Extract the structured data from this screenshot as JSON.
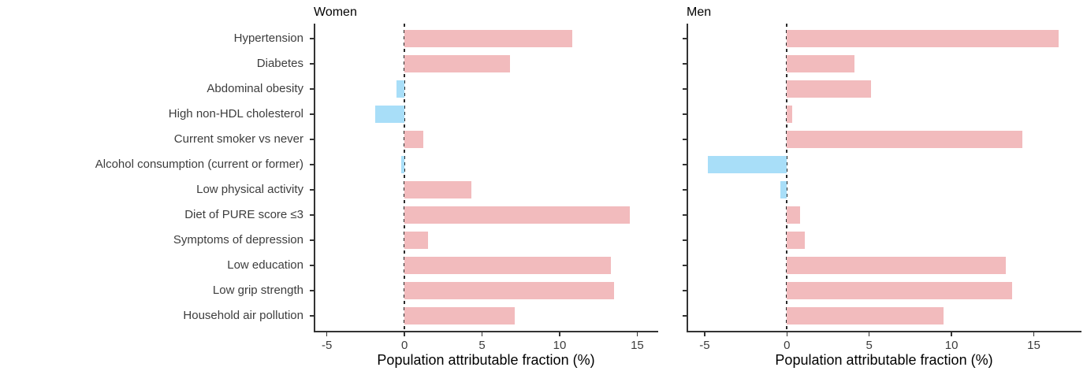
{
  "chart_data": [
    {
      "type": "bar",
      "orientation": "horizontal",
      "title": "Women",
      "xlabel": "Population attributable fraction (%)",
      "categories": [
        "Hypertension",
        "Diabetes",
        "Abdominal obesity",
        "High non-HDL cholesterol",
        "Current smoker vs never",
        "Alcohol consumption (current or former)",
        "Low physical activity",
        "Diet of PURE score ≤3",
        "Symptoms of depression",
        "Low education",
        "Low grip strength",
        "Household air pollution"
      ],
      "values": [
        10.8,
        6.8,
        -0.5,
        -1.9,
        1.2,
        -0.2,
        4.3,
        14.5,
        1.5,
        13.3,
        13.5,
        7.1
      ],
      "xticks": [
        -5,
        0,
        5,
        10,
        15
      ],
      "xlim": [
        -5.85,
        16.35
      ],
      "zero_line": "dashed-at-0",
      "grid": "off",
      "legend": "none",
      "positive_color": "#F2BBBD",
      "negative_color": "#A8DEF8",
      "axis_color": "#333333",
      "axis_text_color": "#3d3d3d"
    },
    {
      "type": "bar",
      "orientation": "horizontal",
      "title": "Men",
      "xlabel": "Population attributable fraction (%)",
      "categories": [
        "Hypertension",
        "Diabetes",
        "Abdominal obesity",
        "High non-HDL cholesterol",
        "Current smoker vs never",
        "Alcohol consumption (current or former)",
        "Low physical activity",
        "Diet of PURE score ≤3",
        "Symptoms of depression",
        "Low education",
        "Low grip strength",
        "Household air pollution"
      ],
      "values": [
        16.5,
        4.1,
        5.1,
        0.3,
        14.3,
        -4.8,
        -0.4,
        0.8,
        1.1,
        13.3,
        13.7,
        9.5
      ],
      "xticks": [
        -5,
        0,
        5,
        10,
        15
      ],
      "xlim": [
        -6.1,
        17.9
      ],
      "zero_line": "dashed-at-0",
      "grid": "off",
      "legend": "none",
      "positive_color": "#F2BBBD",
      "negative_color": "#A8DEF8",
      "axis_color": "#333333",
      "axis_text_color": "#3d3d3d"
    }
  ]
}
